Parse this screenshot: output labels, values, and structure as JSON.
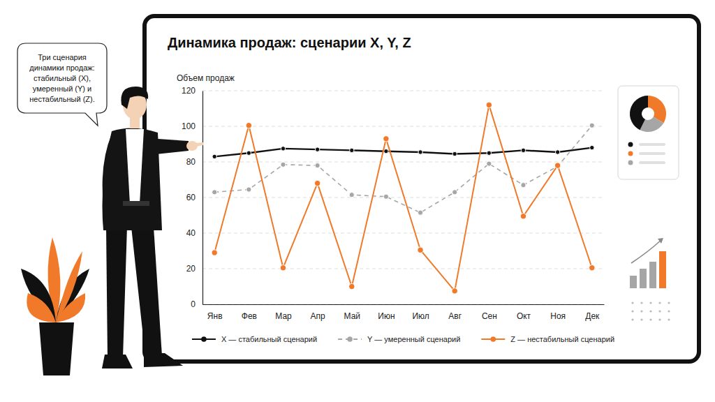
{
  "chart_data": {
    "type": "line",
    "title": "Динамика продаж: сценарии X, Y, Z",
    "y_label": "Объем продаж",
    "annotations": [
      "Три сценария динамики продаж: стабильный (X), умеренный (Y) и нестабильный (Z)."
    ],
    "categories": [
      "Янв",
      "Фев",
      "Мар",
      "Апр",
      "Май",
      "Июн",
      "Июл",
      "Авг",
      "Сен",
      "Окт",
      "Ноя",
      "Дек"
    ],
    "series": [
      {
        "name": "X — стабильный сценарий",
        "color": "#111111",
        "marker": "circle",
        "line_style": "solid",
        "values": [
          83,
          85,
          87.5,
          87,
          86.5,
          86,
          85.5,
          84.5,
          85,
          86.5,
          85.5,
          88
        ]
      },
      {
        "name": "Y — умеренный сценарий",
        "color": "#a6a6a6",
        "marker": "circle",
        "line_style": "dashed",
        "values": [
          63,
          64.5,
          78.5,
          78,
          61.5,
          60.5,
          51.5,
          63,
          79,
          67,
          77.5,
          100.5
        ]
      },
      {
        "name": "Z — нестабильный сценарий",
        "color": "#f07a2a",
        "marker": "circle",
        "line_style": "solid",
        "values": [
          29,
          100.5,
          20.5,
          68,
          10,
          93,
          30.5,
          7.5,
          112,
          49.5,
          78,
          20.5
        ]
      }
    ],
    "ylim": [
      0,
      120
    ],
    "yticks": [
      0,
      20,
      40,
      60,
      80,
      100,
      120
    ],
    "grid": true,
    "legend": "bottom"
  }
}
